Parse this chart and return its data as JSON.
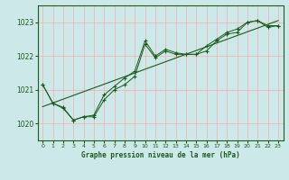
{
  "title": "Graphe pression niveau de la mer (hPa)",
  "bg_color": "#cce8e8",
  "grid_color": "#ffaaaa",
  "line_color": "#1a5c1a",
  "xlim": [
    -0.5,
    23.5
  ],
  "ylim": [
    1019.5,
    1023.5
  ],
  "yticks": [
    1020,
    1021,
    1022,
    1023
  ],
  "xticks": [
    0,
    1,
    2,
    3,
    4,
    5,
    6,
    7,
    8,
    9,
    10,
    11,
    12,
    13,
    14,
    15,
    16,
    17,
    18,
    19,
    20,
    21,
    22,
    23
  ],
  "line1_x": [
    0,
    1,
    2,
    3,
    4,
    5,
    6,
    7,
    8,
    9,
    10,
    11,
    12,
    13,
    14,
    15,
    16,
    17,
    18,
    19,
    20,
    21,
    22,
    23
  ],
  "line1_y": [
    1021.15,
    1020.6,
    1020.48,
    1020.1,
    1020.2,
    1020.2,
    1020.7,
    1021.0,
    1021.15,
    1021.4,
    1022.35,
    1021.95,
    1022.15,
    1022.05,
    1022.05,
    1022.05,
    1022.15,
    1022.45,
    1022.65,
    1022.7,
    1023.0,
    1023.05,
    1022.85,
    1022.9
  ],
  "line2_x": [
    0,
    1,
    2,
    3,
    4,
    5,
    6,
    7,
    8,
    9,
    10,
    11,
    12,
    13,
    14,
    15,
    16,
    17,
    18,
    19,
    20,
    21,
    22,
    23
  ],
  "line2_y": [
    1021.15,
    1020.6,
    1020.45,
    1020.1,
    1020.2,
    1020.25,
    1020.85,
    1021.1,
    1021.35,
    1021.55,
    1022.45,
    1022.0,
    1022.2,
    1022.1,
    1022.05,
    1022.05,
    1022.3,
    1022.5,
    1022.7,
    1022.8,
    1023.0,
    1023.05,
    1022.9,
    1022.9
  ],
  "trend_x": [
    0,
    23
  ],
  "trend_y": [
    1020.5,
    1023.05
  ]
}
